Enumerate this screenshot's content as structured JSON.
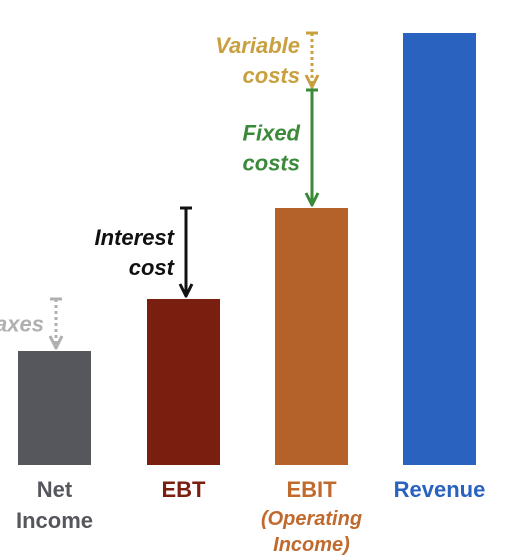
{
  "chart_data": {
    "type": "bar",
    "categories": [
      "Net Income",
      "EBT",
      "EBIT (Operating Income)",
      "Revenue"
    ],
    "category_labels": [
      {
        "lines": [
          "Net",
          "Income"
        ],
        "color": "#55575c"
      },
      {
        "lines": [
          "EBT"
        ],
        "color": "#7a1e10"
      },
      {
        "lines": [
          "EBIT"
        ],
        "sub_lines": [
          "(Operating",
          "Income)"
        ],
        "color": "#c06a2e"
      },
      {
        "lines": [
          "Revenue"
        ],
        "color": "#2a62c0"
      }
    ],
    "values": [
      114,
      166,
      257,
      432
    ],
    "bar_colors": [
      "#55575c",
      "#7a1e10",
      "#b5612a",
      "#2a62c0"
    ],
    "ylim": [
      0,
      432
    ],
    "grid": false,
    "annotations": [
      {
        "text_lines": [
          "Variable",
          "costs"
        ],
        "from": 432,
        "to": 375,
        "color": "#c8a040",
        "style": "dotted",
        "between": [
          2,
          3
        ]
      },
      {
        "text_lines": [
          "Fixed",
          "costs"
        ],
        "from": 375,
        "to": 257,
        "color": "#3a8a3a",
        "style": "solid",
        "between": [
          2,
          3
        ]
      },
      {
        "text_lines": [
          "Interest",
          "cost"
        ],
        "from": 257,
        "to": 166,
        "color": "#111111",
        "style": "solid",
        "between": [
          1,
          2
        ]
      },
      {
        "text_lines": [
          "axes"
        ],
        "from": 166,
        "to": 114,
        "color": "#b0b0b0",
        "style": "dotted",
        "between": [
          0,
          1
        ]
      }
    ]
  }
}
